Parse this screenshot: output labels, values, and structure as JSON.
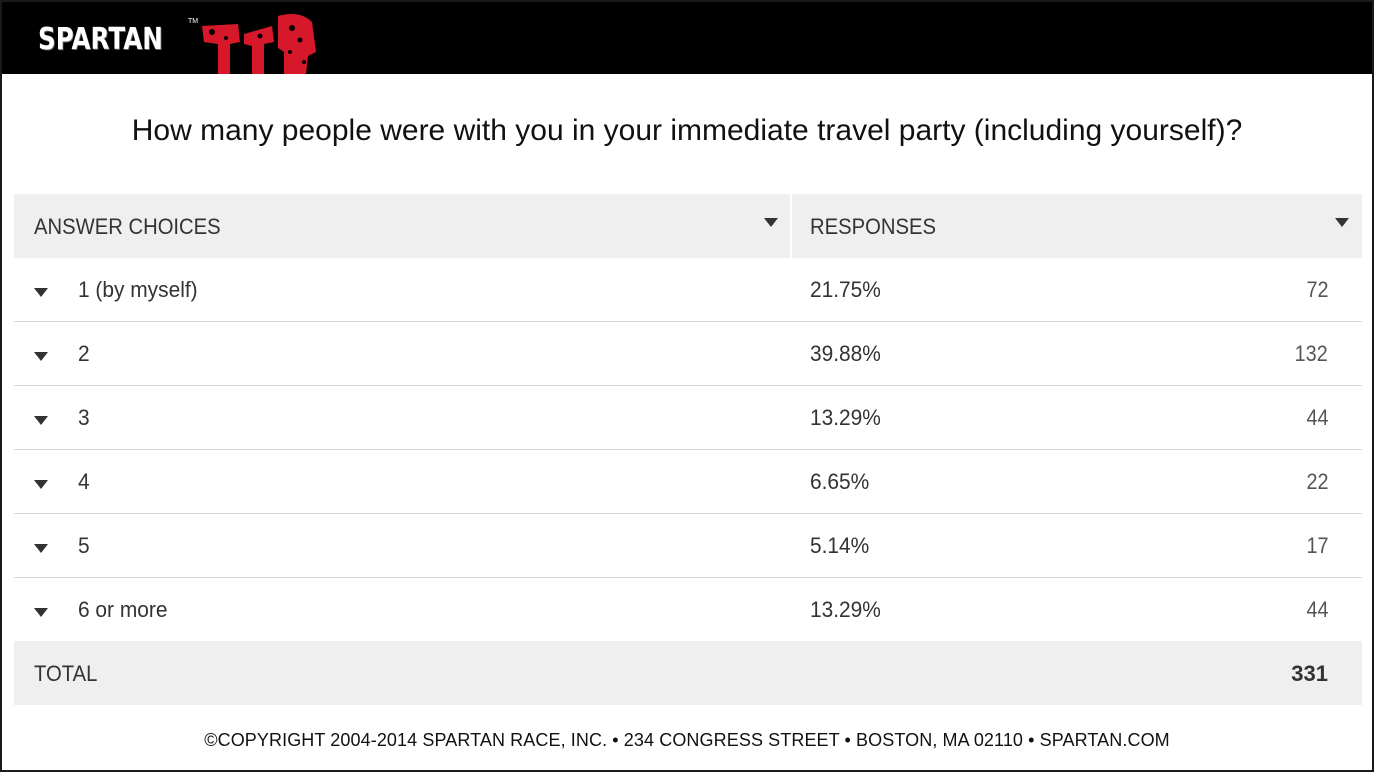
{
  "header": {
    "logo_text": "SPARTAN",
    "logo_tm": "TM",
    "brand_black": "#000000",
    "brand_red": "#d6182a"
  },
  "question": "How many people were with you in your immediate travel party (including yourself)?",
  "table": {
    "headers": {
      "answer_choices": "ANSWER CHOICES",
      "responses": "RESPONSES"
    },
    "rows": [
      {
        "label": "1 (by myself)",
        "percent": "21.75%",
        "count": "72"
      },
      {
        "label": "2",
        "percent": "39.88%",
        "count": "132"
      },
      {
        "label": "3",
        "percent": "13.29%",
        "count": "44"
      },
      {
        "label": "4",
        "percent": "6.65%",
        "count": "22"
      },
      {
        "label": "5",
        "percent": "5.14%",
        "count": "17"
      },
      {
        "label": "6 or more",
        "percent": "13.29%",
        "count": "44"
      }
    ],
    "total": {
      "label": "TOTAL",
      "value": "331"
    }
  },
  "footer": "©COPYRIGHT 2004-2014 SPARTAN RACE, INC. • 234 CONGRESS STREET • BOSTON, MA 02110 • SPARTAN.COM"
}
